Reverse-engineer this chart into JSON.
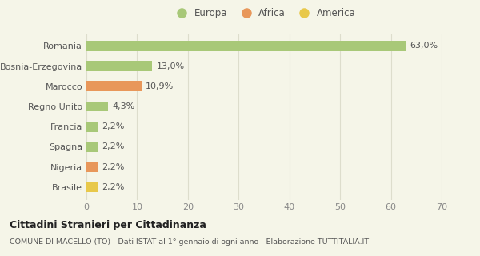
{
  "categories": [
    "Brasile",
    "Nigeria",
    "Spagna",
    "Francia",
    "Regno Unito",
    "Marocco",
    "Bosnia-Erzegovina",
    "Romania"
  ],
  "values": [
    2.2,
    2.2,
    2.2,
    2.2,
    4.3,
    10.9,
    13.0,
    63.0
  ],
  "labels": [
    "2,2%",
    "2,2%",
    "2,2%",
    "2,2%",
    "4,3%",
    "10,9%",
    "13,0%",
    "63,0%"
  ],
  "bar_colors": [
    "#e8c84a",
    "#e8975a",
    "#a8c878",
    "#a8c878",
    "#a8c878",
    "#e8975a",
    "#a8c878",
    "#a8c878"
  ],
  "legend": [
    {
      "label": "Europa",
      "color": "#a8c878"
    },
    {
      "label": "Africa",
      "color": "#e8975a"
    },
    {
      "label": "America",
      "color": "#e8c84a"
    }
  ],
  "xlim": [
    0,
    70
  ],
  "xticks": [
    0,
    10,
    20,
    30,
    40,
    50,
    60,
    70
  ],
  "title": "Cittadini Stranieri per Cittadinanza",
  "subtitle": "COMUNE DI MACELLO (TO) - Dati ISTAT al 1° gennaio di ogni anno - Elaborazione TUTTITALIA.IT",
  "background_color": "#f5f5e8",
  "grid_color": "#ddddcc",
  "bar_height": 0.5,
  "text_fontsize": 8,
  "label_fontsize": 8,
  "ylabel_fontsize": 8
}
